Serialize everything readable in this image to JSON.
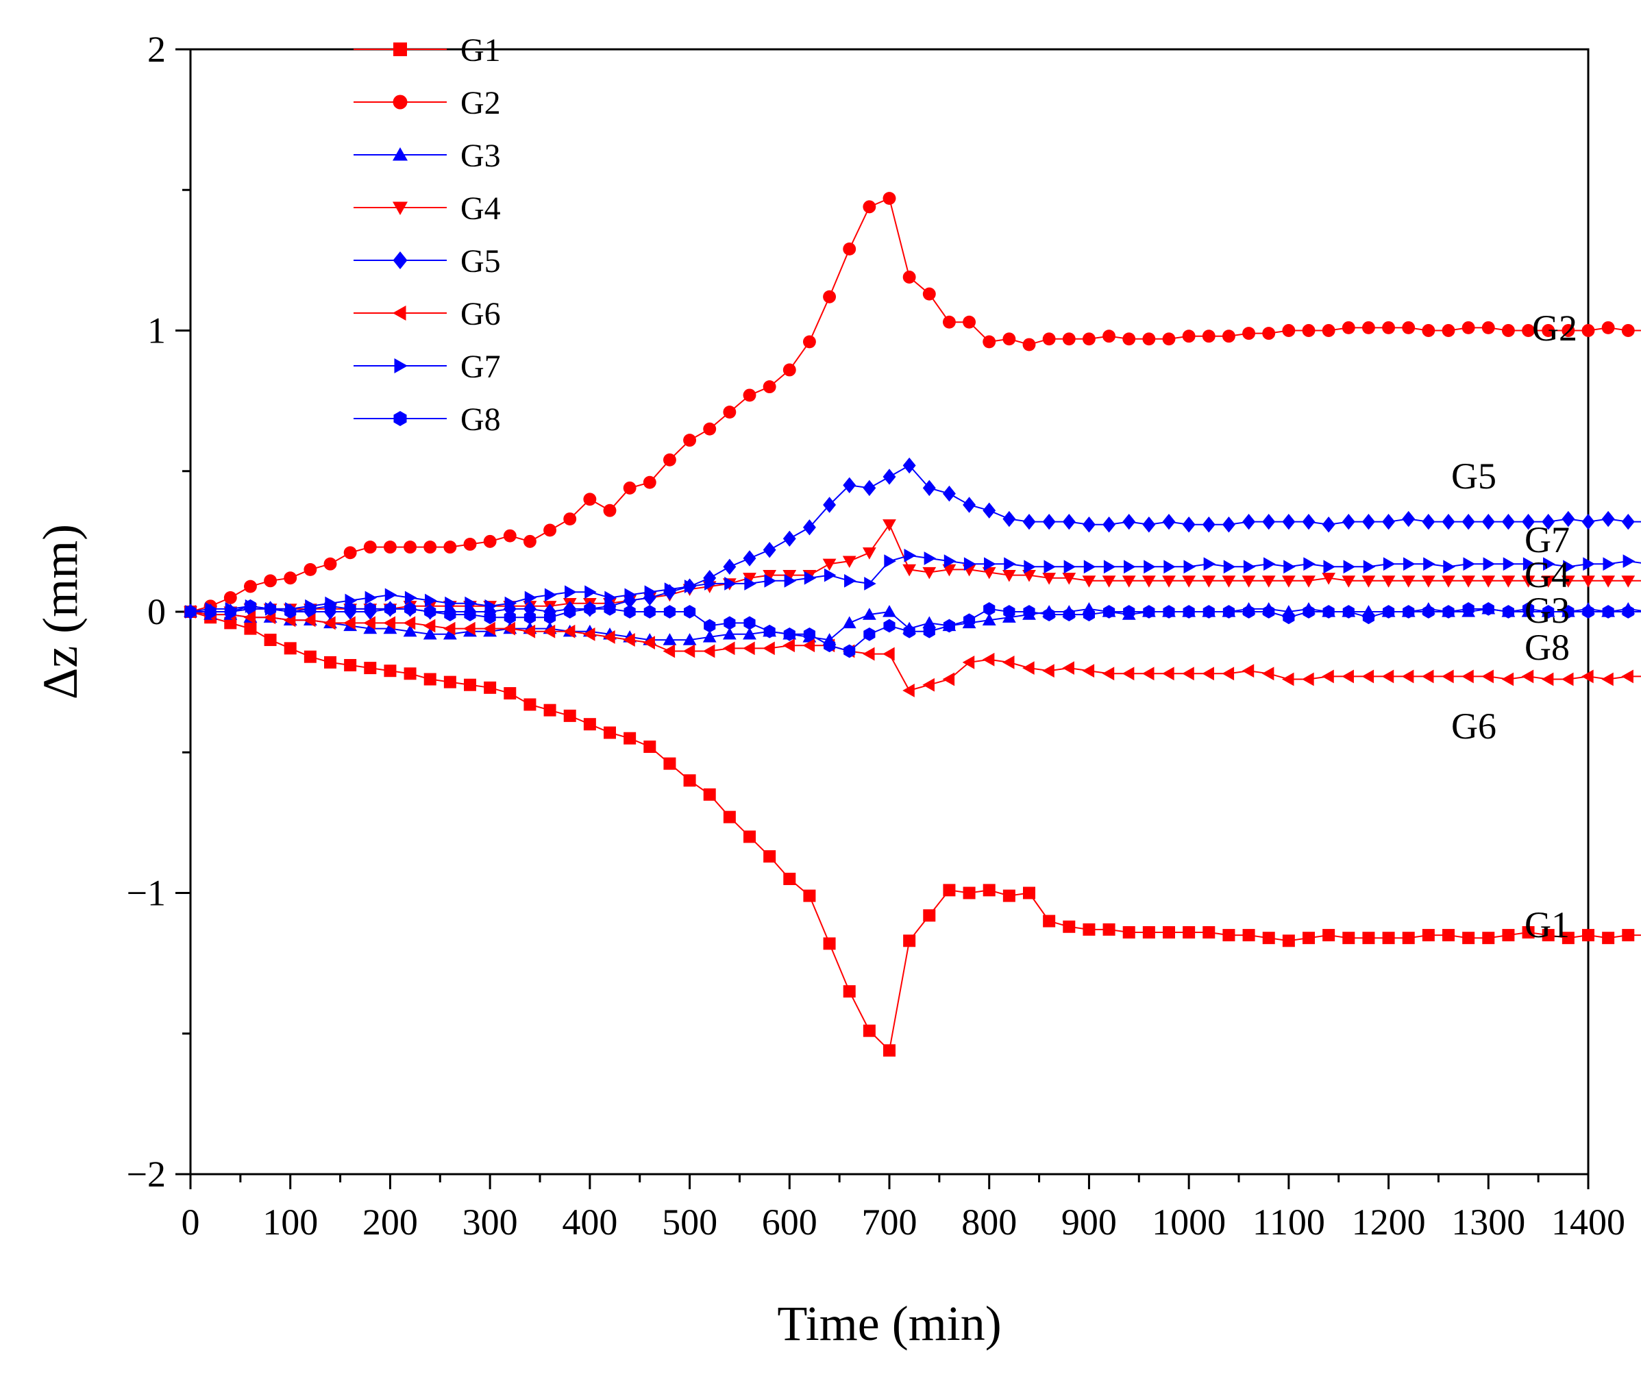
{
  "chart_data": {
    "type": "line",
    "xlabel": "Time (min)",
    "ylabel": "Δz (mm)",
    "xlim": [
      0,
      1400
    ],
    "ylim": [
      -2,
      2
    ],
    "x_ticks": [
      0,
      100,
      200,
      300,
      400,
      500,
      600,
      700,
      800,
      900,
      1000,
      1100,
      1200,
      1300,
      1400
    ],
    "y_ticks": [
      -2,
      -1,
      0,
      1,
      2
    ],
    "y_tick_labels": [
      "−2",
      "−1",
      "0",
      "1",
      "2"
    ],
    "x_step": 20,
    "legend_position": "top-left",
    "series": [
      {
        "name": "G1",
        "color": "#ff0000",
        "marker": "square",
        "values": [
          0.0,
          -0.02,
          -0.04,
          -0.06,
          -0.1,
          -0.13,
          -0.16,
          -0.18,
          -0.19,
          -0.2,
          -0.21,
          -0.22,
          -0.24,
          -0.25,
          -0.26,
          -0.27,
          -0.29,
          -0.33,
          -0.35,
          -0.37,
          -0.4,
          -0.43,
          -0.45,
          -0.48,
          -0.54,
          -0.6,
          -0.65,
          -0.73,
          -0.8,
          -0.87,
          -0.95,
          -1.01,
          -1.18,
          -1.35,
          -1.49,
          -1.56,
          -1.17,
          -1.08,
          -0.99,
          -1.0,
          -0.99,
          -1.01,
          -1.0,
          -1.1,
          -1.12,
          -1.13,
          -1.13,
          -1.14,
          -1.14,
          -1.14,
          -1.14,
          -1.14,
          -1.15,
          -1.15,
          -1.16,
          -1.17,
          -1.16,
          -1.15,
          -1.16,
          -1.16,
          -1.16,
          -1.16,
          -1.15,
          -1.15,
          -1.16,
          -1.16,
          -1.15,
          -1.14,
          -1.15,
          -1.16,
          -1.15,
          -1.16,
          -1.15,
          -1.15
        ],
        "end_label": "G1"
      },
      {
        "name": "G2",
        "color": "#ff0000",
        "marker": "circle",
        "values": [
          0.0,
          0.02,
          0.05,
          0.09,
          0.11,
          0.12,
          0.15,
          0.17,
          0.21,
          0.23,
          0.23,
          0.23,
          0.23,
          0.23,
          0.24,
          0.25,
          0.27,
          0.25,
          0.29,
          0.33,
          0.4,
          0.36,
          0.44,
          0.46,
          0.54,
          0.61,
          0.65,
          0.71,
          0.77,
          0.8,
          0.86,
          0.96,
          1.12,
          1.29,
          1.44,
          1.47,
          1.19,
          1.13,
          1.03,
          1.03,
          0.96,
          0.97,
          0.95,
          0.97,
          0.97,
          0.97,
          0.98,
          0.97,
          0.97,
          0.97,
          0.98,
          0.98,
          0.98,
          0.99,
          0.99,
          1.0,
          1.0,
          1.0,
          1.01,
          1.01,
          1.01,
          1.01,
          1.0,
          1.0,
          1.01,
          1.01,
          1.0,
          1.0,
          1.0,
          1.0,
          1.0,
          1.01,
          1.0,
          1.0
        ],
        "end_label": "G2"
      },
      {
        "name": "G3",
        "color": "#0000ff",
        "marker": "triangle-up",
        "values": [
          0.0,
          -0.01,
          -0.01,
          -0.02,
          -0.02,
          -0.03,
          -0.03,
          -0.04,
          -0.05,
          -0.06,
          -0.06,
          -0.07,
          -0.08,
          -0.08,
          -0.07,
          -0.07,
          -0.06,
          -0.06,
          -0.06,
          -0.07,
          -0.07,
          -0.08,
          -0.09,
          -0.1,
          -0.1,
          -0.1,
          -0.09,
          -0.08,
          -0.08,
          -0.07,
          -0.08,
          -0.09,
          -0.1,
          -0.04,
          -0.01,
          0.0,
          -0.06,
          -0.04,
          -0.05,
          -0.04,
          -0.03,
          -0.02,
          -0.01,
          0.0,
          0.0,
          0.01,
          0.0,
          -0.01,
          0.0,
          0.0,
          0.0,
          0.0,
          0.0,
          0.01,
          0.01,
          0.0,
          0.01,
          0.0,
          0.0,
          0.0,
          0.0,
          0.0,
          0.01,
          0.0,
          0.0,
          0.01,
          0.0,
          0.0,
          0.0,
          0.0,
          0.01,
          0.0,
          0.01,
          0.0
        ],
        "end_label": "G3"
      },
      {
        "name": "G4",
        "color": "#ff0000",
        "marker": "triangle-down",
        "values": [
          0.0,
          0.0,
          0.0,
          0.01,
          0.01,
          0.01,
          0.01,
          0.01,
          0.01,
          0.01,
          0.01,
          0.02,
          0.02,
          0.02,
          0.02,
          0.02,
          0.02,
          0.02,
          0.02,
          0.03,
          0.03,
          0.03,
          0.04,
          0.05,
          0.06,
          0.08,
          0.09,
          0.1,
          0.12,
          0.13,
          0.13,
          0.13,
          0.17,
          0.18,
          0.21,
          0.31,
          0.15,
          0.14,
          0.15,
          0.15,
          0.14,
          0.13,
          0.13,
          0.12,
          0.12,
          0.11,
          0.11,
          0.11,
          0.11,
          0.11,
          0.11,
          0.11,
          0.11,
          0.11,
          0.11,
          0.11,
          0.11,
          0.12,
          0.11,
          0.11,
          0.11,
          0.11,
          0.11,
          0.11,
          0.11,
          0.11,
          0.11,
          0.11,
          0.11,
          0.11,
          0.11,
          0.11,
          0.11,
          0.11
        ],
        "end_label": "G4"
      },
      {
        "name": "G5",
        "color": "#0000ff",
        "marker": "diamond",
        "values": [
          0.0,
          0.0,
          0.0,
          0.01,
          0.01,
          0.0,
          0.0,
          0.0,
          0.0,
          0.0,
          0.01,
          0.01,
          0.0,
          0.0,
          0.0,
          0.0,
          0.01,
          0.01,
          0.0,
          0.01,
          0.01,
          0.02,
          0.04,
          0.05,
          0.07,
          0.09,
          0.12,
          0.16,
          0.19,
          0.22,
          0.26,
          0.3,
          0.38,
          0.45,
          0.44,
          0.48,
          0.52,
          0.44,
          0.42,
          0.38,
          0.36,
          0.33,
          0.32,
          0.32,
          0.32,
          0.31,
          0.31,
          0.32,
          0.31,
          0.32,
          0.31,
          0.31,
          0.31,
          0.32,
          0.32,
          0.32,
          0.32,
          0.31,
          0.32,
          0.32,
          0.32,
          0.33,
          0.32,
          0.32,
          0.32,
          0.32,
          0.32,
          0.32,
          0.32,
          0.33,
          0.32,
          0.33,
          0.32,
          0.32
        ],
        "end_label": "G5"
      },
      {
        "name": "G6",
        "color": "#ff0000",
        "marker": "triangle-left",
        "values": [
          0.0,
          -0.01,
          -0.01,
          -0.02,
          -0.02,
          -0.03,
          -0.03,
          -0.04,
          -0.04,
          -0.04,
          -0.04,
          -0.04,
          -0.05,
          -0.06,
          -0.06,
          -0.06,
          -0.06,
          -0.07,
          -0.07,
          -0.07,
          -0.08,
          -0.09,
          -0.1,
          -0.11,
          -0.14,
          -0.14,
          -0.14,
          -0.13,
          -0.13,
          -0.13,
          -0.12,
          -0.12,
          -0.12,
          -0.14,
          -0.15,
          -0.15,
          -0.28,
          -0.26,
          -0.24,
          -0.18,
          -0.17,
          -0.18,
          -0.2,
          -0.21,
          -0.2,
          -0.21,
          -0.22,
          -0.22,
          -0.22,
          -0.22,
          -0.22,
          -0.22,
          -0.22,
          -0.21,
          -0.22,
          -0.24,
          -0.24,
          -0.23,
          -0.23,
          -0.23,
          -0.23,
          -0.23,
          -0.23,
          -0.23,
          -0.23,
          -0.23,
          -0.24,
          -0.23,
          -0.24,
          -0.24,
          -0.23,
          -0.24,
          -0.23,
          -0.23
        ],
        "end_label": "G6"
      },
      {
        "name": "G7",
        "color": "#0000ff",
        "marker": "triangle-right",
        "values": [
          0.0,
          0.01,
          0.01,
          0.02,
          0.01,
          0.01,
          0.02,
          0.03,
          0.04,
          0.05,
          0.06,
          0.05,
          0.04,
          0.03,
          0.03,
          0.02,
          0.03,
          0.05,
          0.06,
          0.07,
          0.07,
          0.05,
          0.06,
          0.07,
          0.08,
          0.09,
          0.1,
          0.1,
          0.1,
          0.11,
          0.11,
          0.12,
          0.13,
          0.11,
          0.1,
          0.18,
          0.2,
          0.19,
          0.18,
          0.17,
          0.17,
          0.17,
          0.16,
          0.16,
          0.16,
          0.16,
          0.16,
          0.16,
          0.16,
          0.16,
          0.16,
          0.17,
          0.16,
          0.16,
          0.17,
          0.16,
          0.17,
          0.16,
          0.16,
          0.16,
          0.17,
          0.17,
          0.17,
          0.16,
          0.17,
          0.17,
          0.17,
          0.17,
          0.17,
          0.16,
          0.17,
          0.17,
          0.18,
          0.17
        ],
        "end_label": "G7"
      },
      {
        "name": "G8",
        "color": "#0000ff",
        "marker": "hexagon",
        "values": [
          0.0,
          0.0,
          0.0,
          0.02,
          0.01,
          0.0,
          0.01,
          0.02,
          0.01,
          0.01,
          0.01,
          0.01,
          0.0,
          -0.01,
          -0.01,
          -0.02,
          -0.02,
          -0.02,
          -0.02,
          0.0,
          0.01,
          0.01,
          0.0,
          0.0,
          0.0,
          0.0,
          -0.05,
          -0.04,
          -0.04,
          -0.07,
          -0.08,
          -0.08,
          -0.12,
          -0.14,
          -0.08,
          -0.05,
          -0.07,
          -0.07,
          -0.05,
          -0.03,
          0.01,
          0.0,
          0.0,
          -0.01,
          -0.01,
          -0.01,
          0.0,
          0.0,
          0.0,
          0.0,
          0.0,
          0.0,
          0.0,
          0.0,
          0.0,
          -0.02,
          0.0,
          0.0,
          0.0,
          -0.02,
          0.0,
          0.0,
          0.0,
          0.0,
          0.01,
          0.01,
          0.0,
          0.01,
          0.0,
          0.0,
          0.0,
          0.0,
          0.0,
          0.0
        ],
        "end_label": "G8"
      }
    ]
  }
}
